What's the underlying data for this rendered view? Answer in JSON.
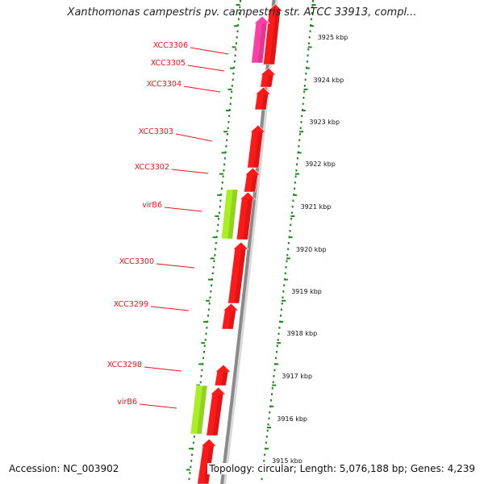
{
  "title": "Xanthomonas campestris pv. campestris str. ATCC 33913, compl...",
  "accession": "Accession: NC_003902",
  "topology": "Topology: circular; Length: 5,076,188 bp; Genes: 4,239",
  "colors": {
    "backbone_dark": "#8a8a8a",
    "backbone_light": "#d9d9d9",
    "gene_red": "#ff1a1a",
    "gene_pink": "#ff3fa6",
    "gene_green": "#a7f023",
    "label_red": "#e8141c",
    "dots_green": "#1f8a1f"
  },
  "ticks": [
    {
      "label": "3925 kbp"
    },
    {
      "label": "3924 kbp"
    },
    {
      "label": "3923 kbp"
    },
    {
      "label": "3922 kbp"
    },
    {
      "label": "3921 kbp"
    },
    {
      "label": "3920 kbp"
    },
    {
      "label": "3919 kbp"
    },
    {
      "label": "3918 kbp"
    },
    {
      "label": "3917 kbp"
    },
    {
      "label": "3916 kbp"
    },
    {
      "label": "3915 kbp"
    }
  ],
  "gene_labels": [
    {
      "label": "XCC3306"
    },
    {
      "label": "XCC3305"
    },
    {
      "label": "XCC3304"
    },
    {
      "label": "XCC3303"
    },
    {
      "label": "XCC3302"
    },
    {
      "label": "virB6"
    },
    {
      "label": "XCC3300"
    },
    {
      "label": "XCC3299"
    },
    {
      "label": "XCC3298"
    },
    {
      "label": "virB6"
    }
  ]
}
